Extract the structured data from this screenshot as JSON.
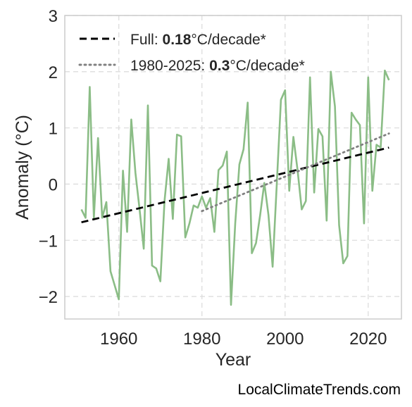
{
  "chart_data": {
    "type": "line",
    "xlabel": "Year",
    "ylabel": "Anomaly (°C)",
    "xlim": [
      1947,
      2028
    ],
    "ylim": [
      -2.4,
      3.0
    ],
    "xticks": [
      1960,
      1980,
      2000,
      2020
    ],
    "yticks": [
      -2,
      -1,
      0,
      1,
      2,
      3
    ],
    "ytick_labels": [
      "−2",
      "−1",
      "0",
      "1",
      "2",
      "3"
    ],
    "grid": true,
    "legend_position": "top-left",
    "series": [
      {
        "color": "#8bbd86",
        "x": [
          1951,
          1952,
          1953,
          1954,
          1955,
          1956,
          1957,
          1958,
          1959,
          1960,
          1961,
          1962,
          1963,
          1964,
          1965,
          1966,
          1967,
          1968,
          1969,
          1970,
          1971,
          1972,
          1973,
          1974,
          1975,
          1976,
          1977,
          1978,
          1979,
          1980,
          1981,
          1982,
          1983,
          1984,
          1985,
          1986,
          1987,
          1988,
          1989,
          1990,
          1991,
          1992,
          1993,
          1994,
          1995,
          1996,
          1997,
          1998,
          1999,
          2000,
          2001,
          2002,
          2003,
          2004,
          2005,
          2006,
          2007,
          2008,
          2009,
          2010,
          2011,
          2012,
          2013,
          2014,
          2015,
          2016,
          2017,
          2018,
          2019,
          2020,
          2021,
          2022,
          2023,
          2024,
          2025
        ],
        "y": [
          -0.45,
          -0.6,
          1.73,
          -0.6,
          0.82,
          -0.6,
          -0.32,
          -1.55,
          -1.8,
          -2.05,
          0.24,
          -0.85,
          1.15,
          0.2,
          -0.45,
          -1.15,
          1.4,
          -1.45,
          -1.5,
          -1.73,
          -0.3,
          0.45,
          -0.62,
          0.88,
          0.85,
          -0.95,
          -0.7,
          -0.38,
          -0.42,
          -0.22,
          -0.42,
          -0.25,
          -0.85,
          0.25,
          0.33,
          0.58,
          -2.15,
          -0.7,
          0.35,
          0.62,
          1.45,
          -1.23,
          -1.05,
          -0.55,
          0.02,
          -0.55,
          -1.47,
          0.0,
          1.5,
          1.67,
          -0.12,
          0.84,
          0.25,
          -0.45,
          -0.3,
          1.9,
          -0.15,
          0.98,
          0.85,
          -0.65,
          2.0,
          1.38,
          -0.73,
          -1.41,
          -1.28,
          1.27,
          1.15,
          1.05,
          -0.7,
          1.9,
          -0.12,
          0.7,
          0.65,
          2.02,
          1.85
        ]
      },
      {
        "name": "Full: 0.18°C/decade*",
        "color": "#000000",
        "style": "dashed",
        "x": [
          1951,
          2025
        ],
        "y": [
          -0.68,
          0.65
        ]
      },
      {
        "name": "1980-2025: 0.3°C/decade*",
        "color": "#808080",
        "style": "dotted",
        "x": [
          1980,
          2025
        ],
        "y": [
          -0.48,
          0.9
        ]
      }
    ]
  },
  "legend": {
    "full_prefix": "Full: ",
    "full_rate": "0.18",
    "full_suffix": "°C/decade*",
    "recent_prefix": "1980-2025: ",
    "recent_rate": "0.3",
    "recent_suffix": "°C/decade*"
  },
  "footer": "LocalClimateTrends.com"
}
